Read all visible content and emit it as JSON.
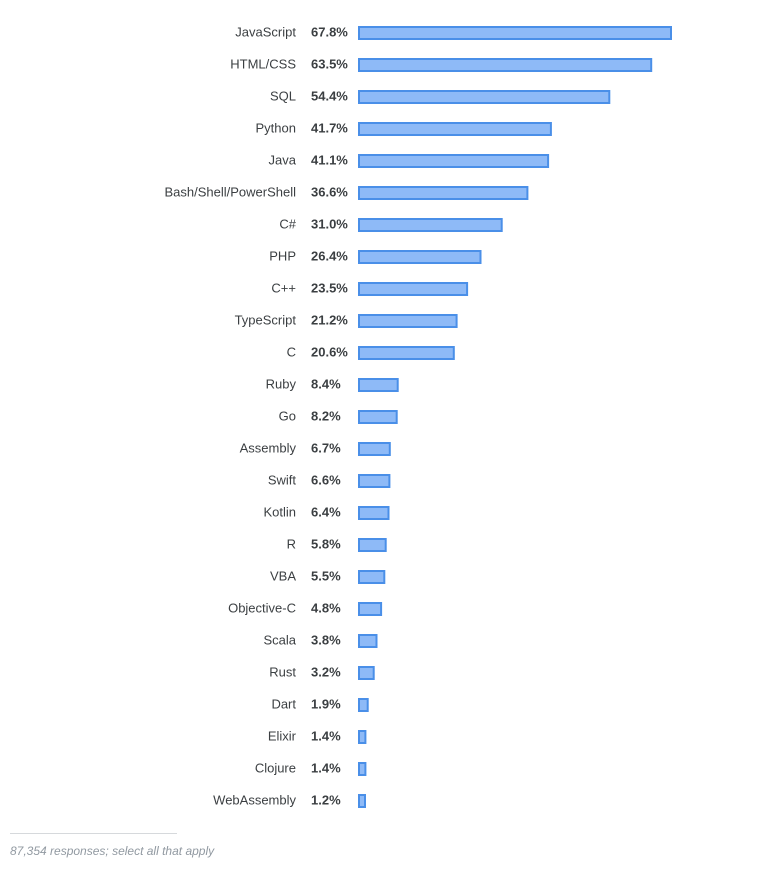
{
  "chart_data": {
    "type": "bar",
    "orientation": "horizontal",
    "categories": [
      "JavaScript",
      "HTML/CSS",
      "SQL",
      "Python",
      "Java",
      "Bash/Shell/PowerShell",
      "C#",
      "PHP",
      "C++",
      "TypeScript",
      "C",
      "Ruby",
      "Go",
      "Assembly",
      "Swift",
      "Kotlin",
      "R",
      "VBA",
      "Objective-C",
      "Scala",
      "Rust",
      "Dart",
      "Elixir",
      "Clojure",
      "WebAssembly"
    ],
    "values": [
      67.8,
      63.5,
      54.4,
      41.7,
      41.1,
      36.6,
      31.0,
      26.4,
      23.5,
      21.2,
      20.6,
      8.4,
      8.2,
      6.7,
      6.6,
      6.4,
      5.8,
      5.5,
      4.8,
      3.8,
      3.2,
      1.9,
      1.4,
      1.4,
      1.2
    ],
    "value_labels": [
      "67.8%",
      "63.5%",
      "54.4%",
      "41.7%",
      "41.1%",
      "36.6%",
      "31.0%",
      "26.4%",
      "23.5%",
      "21.2%",
      "20.6%",
      "8.4%",
      "8.2%",
      "6.7%",
      "6.6%",
      "6.4%",
      "5.8%",
      "5.5%",
      "4.8%",
      "3.8%",
      "3.2%",
      "1.9%",
      "1.4%",
      "1.4%",
      "1.2%"
    ],
    "title": "",
    "xlabel": "",
    "ylabel": "",
    "xlim": [
      0,
      100
    ],
    "grid": false,
    "colors": {
      "bar_fill": "#8ebaf7",
      "bar_stroke": "#4a8fe8"
    }
  },
  "footer": {
    "note": "87,354 responses; select all that apply"
  }
}
